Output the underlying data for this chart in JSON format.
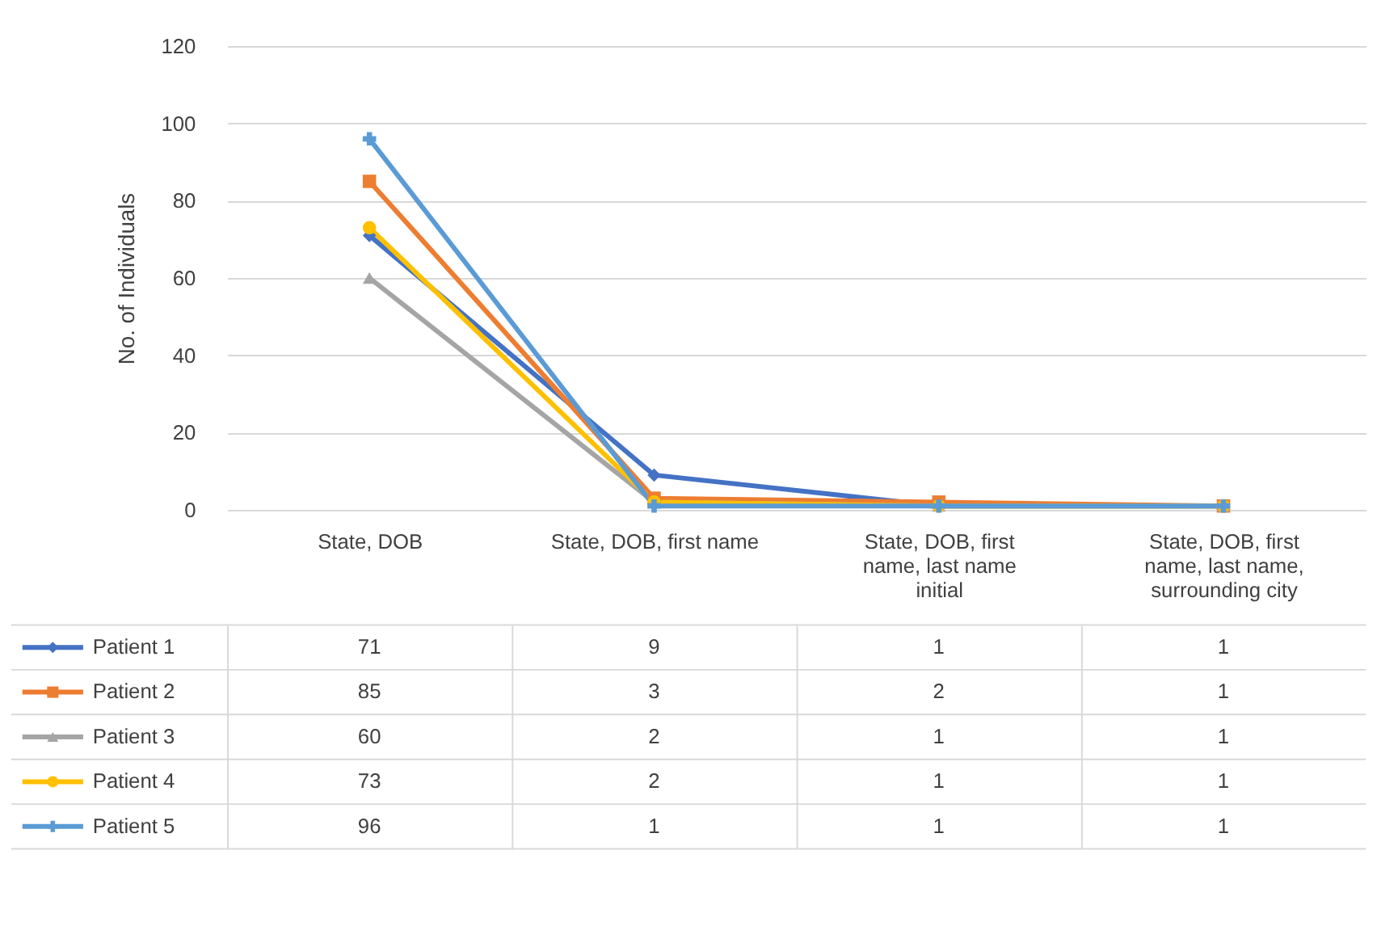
{
  "chart_data": {
    "type": "line",
    "ylabel": "No. of Individuals",
    "categories": [
      "State, DOB",
      "State, DOB, first name",
      "State, DOB, first name, last name initial",
      "State, DOB, first name, last name, surrounding city"
    ],
    "series": [
      {
        "name": "Patient 1",
        "color": "#4472c4",
        "marker": "diamond",
        "values": [
          71,
          9,
          1,
          1
        ]
      },
      {
        "name": "Patient 2",
        "color": "#ed7d31",
        "marker": "square",
        "values": [
          85,
          3,
          2,
          1
        ]
      },
      {
        "name": "Patient 3",
        "color": "#a5a5a5",
        "marker": "triangle",
        "values": [
          60,
          2,
          1,
          1
        ]
      },
      {
        "name": "Patient 4",
        "color": "#ffc000",
        "marker": "circle",
        "values": [
          73,
          2,
          1,
          1
        ]
      },
      {
        "name": "Patient 5",
        "color": "#5b9bd5",
        "marker": "cross",
        "values": [
          96,
          1,
          1,
          1
        ]
      }
    ],
    "ylim": [
      0,
      120
    ],
    "yticks": [
      0,
      20,
      40,
      60,
      80,
      100,
      120
    ],
    "grid": "y",
    "legend": "bottom",
    "data_labels": true
  }
}
